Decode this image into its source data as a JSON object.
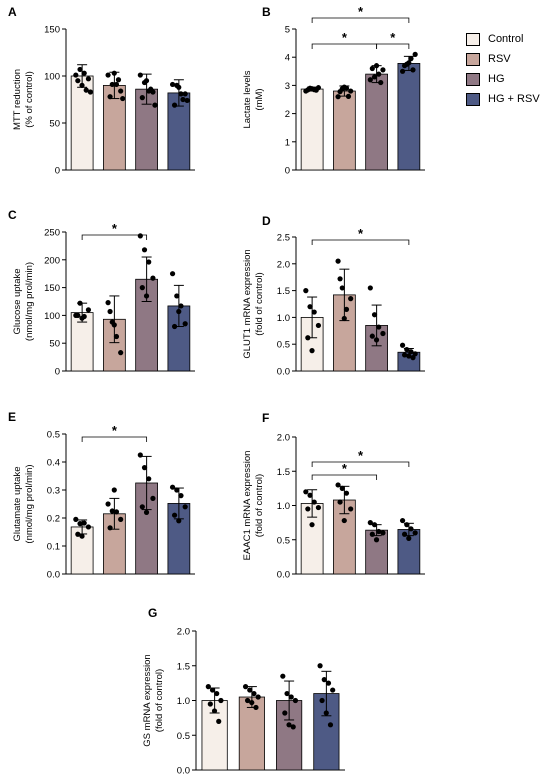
{
  "legend": {
    "entries": [
      {
        "label": "Control",
        "color": "#f6efe9"
      },
      {
        "label": "RSV",
        "color": "#c7a69c"
      },
      {
        "label": "HG",
        "color": "#8f7884"
      },
      {
        "label": "HG + RSV",
        "color": "#4e5a85"
      }
    ]
  },
  "chart_data": [
    {
      "panel": "A",
      "type": "bar",
      "categories": [
        "Control",
        "RSV",
        "HG",
        "HG + RSV"
      ],
      "values": [
        100,
        90,
        86,
        82
      ],
      "errors": [
        12,
        14,
        16,
        14
      ],
      "points": [
        [
          101,
          107,
          103,
          97,
          95,
          90,
          85,
          83
        ],
        [
          101,
          91,
          91,
          84,
          78,
          103,
          96,
          76
        ],
        [
          101,
          93,
          84,
          83,
          77,
          95,
          86,
          69
        ],
        [
          91,
          90,
          81,
          81,
          69,
          88,
          75,
          74
        ]
      ],
      "ylabel": [
        "MTT reduction",
        "(% of control)"
      ],
      "ylim": [
        0,
        150
      ],
      "yticks": [
        0,
        50,
        100,
        150
      ],
      "significance": []
    },
    {
      "panel": "B",
      "type": "bar",
      "categories": [
        "Control",
        "RSV",
        "HG",
        "HG + RSV"
      ],
      "values": [
        2.87,
        2.8,
        3.4,
        3.78
      ],
      "errors": [
        0.07,
        0.18,
        0.3,
        0.25
      ],
      "points": [
        [
          2.8,
          2.9,
          2.85,
          2.92,
          2.84,
          2.88,
          2.83
        ],
        [
          2.6,
          2.88,
          2.9,
          2.8,
          2.78,
          2.94,
          2.61
        ],
        [
          3.2,
          3.3,
          3.4,
          3.55,
          3.6,
          3.7,
          3.1
        ],
        [
          3.5,
          3.75,
          3.95,
          4.1,
          3.7,
          3.8,
          3.55
        ]
      ],
      "ylabel": [
        "Lactate levels",
        "(mM)"
      ],
      "ylim": [
        0,
        5
      ],
      "yticks": [
        0.0,
        1.0,
        2.0,
        3.0,
        4.0,
        5.0
      ],
      "significance": [
        {
          "from": 0,
          "to": 2,
          "label": "*"
        },
        {
          "from": 2,
          "to": 3,
          "label": "*"
        },
        {
          "from": 0,
          "to": 3,
          "label": "*"
        }
      ]
    },
    {
      "panel": "C",
      "type": "bar",
      "categories": [
        "Control",
        "RSV",
        "HG",
        "HG + RSV"
      ],
      "values": [
        105,
        93,
        165,
        117
      ],
      "errors": [
        17,
        42,
        40,
        37
      ],
      "points": [
        [
          100,
          122,
          98,
          110,
          100,
          95
        ],
        [
          123,
          88,
          62,
          33,
          107,
          83
        ],
        [
          243,
          218,
          196,
          167,
          150,
          135
        ],
        [
          175,
          135,
          117,
          85,
          80,
          107
        ]
      ],
      "ylabel": [
        "Glucose uptake",
        "(nmol/mg prol/min)"
      ],
      "ylim": [
        0,
        250
      ],
      "yticks": [
        0,
        50,
        100,
        150,
        200,
        250
      ],
      "significance": [
        {
          "from": 0,
          "to": 2,
          "label": "*"
        }
      ]
    },
    {
      "panel": "D",
      "type": "bar",
      "categories": [
        "Control",
        "RSV",
        "HG",
        "HG + RSV"
      ],
      "values": [
        1.0,
        1.42,
        0.85,
        0.35
      ],
      "errors": [
        0.38,
        0.48,
        0.38,
        0.07
      ],
      "points": [
        [
          1.5,
          1.2,
          1.1,
          0.85,
          0.62,
          0.38
        ],
        [
          2.05,
          1.55,
          1.15,
          1.35,
          1.72,
          0.98
        ],
        [
          1.55,
          1.05,
          0.82,
          0.7,
          0.65,
          0.58
        ],
        [
          0.48,
          0.4,
          0.36,
          0.32,
          0.3,
          0.28,
          0.25
        ]
      ],
      "ylabel": [
        "GLUT1 mRNA expression",
        "(fold of control)"
      ],
      "ylim": [
        0,
        2.5
      ],
      "yticks": [
        0.0,
        0.5,
        1.0,
        1.5,
        2.0,
        2.5
      ],
      "significance": [
        {
          "from": 0,
          "to": 3,
          "label": "*"
        }
      ]
    },
    {
      "panel": "E",
      "type": "bar",
      "categories": [
        "Control",
        "RSV",
        "HG",
        "HG + RSV"
      ],
      "values": [
        0.168,
        0.215,
        0.325,
        0.252
      ],
      "errors": [
        0.025,
        0.055,
        0.095,
        0.055
      ],
      "points": [
        [
          0.195,
          0.18,
          0.182,
          0.168,
          0.142,
          0.135
        ],
        [
          0.25,
          0.225,
          0.222,
          0.195,
          0.165,
          0.3
        ],
        [
          0.425,
          0.38,
          0.34,
          0.27,
          0.24,
          0.22
        ],
        [
          0.31,
          0.3,
          0.28,
          0.24,
          0.21,
          0.19
        ]
      ],
      "ylabel": [
        "Glutamate uptake",
        "(nmol/mg prol/min)"
      ],
      "ylim": [
        0,
        0.5
      ],
      "yticks": [
        0.0,
        0.1,
        0.2,
        0.3,
        0.4,
        0.5
      ],
      "significance": [
        {
          "from": 0,
          "to": 2,
          "label": "*"
        }
      ]
    },
    {
      "panel": "F",
      "type": "bar",
      "categories": [
        "Control",
        "RSV",
        "HG",
        "HG + RSV"
      ],
      "values": [
        1.03,
        1.08,
        0.64,
        0.65
      ],
      "errors": [
        0.2,
        0.2,
        0.08,
        0.09
      ],
      "points": [
        [
          1.2,
          1.15,
          1.05,
          0.97,
          0.95,
          0.72
        ],
        [
          1.3,
          1.25,
          1.18,
          0.95,
          1.05,
          0.78
        ],
        [
          0.75,
          0.72,
          0.62,
          0.6,
          0.58,
          0.5
        ],
        [
          0.78,
          0.72,
          0.66,
          0.6,
          0.58,
          0.52
        ]
      ],
      "ylabel": [
        "EAAC1 mRNA expression",
        "(fold of control)"
      ],
      "ylim": [
        0,
        2.0
      ],
      "yticks": [
        0.0,
        0.5,
        1.0,
        1.5,
        2.0
      ],
      "significance": [
        {
          "from": 0,
          "to": 2,
          "label": "*"
        },
        {
          "from": 0,
          "to": 3,
          "label": "*"
        }
      ]
    },
    {
      "panel": "G",
      "type": "bar",
      "categories": [
        "Control",
        "RSV",
        "HG",
        "HG + RSV"
      ],
      "values": [
        1.0,
        1.05,
        1.0,
        1.1
      ],
      "errors": [
        0.18,
        0.15,
        0.28,
        0.32
      ],
      "points": [
        [
          1.2,
          1.15,
          1.1,
          1.0,
          0.95,
          0.85,
          0.7
        ],
        [
          1.2,
          1.15,
          1.1,
          1.05,
          1.0,
          0.97,
          0.9
        ],
        [
          1.35,
          1.1,
          1.05,
          1.0,
          0.82,
          0.65,
          0.62
        ],
        [
          1.5,
          1.3,
          1.25,
          1.15,
          1.0,
          0.82,
          0.65
        ]
      ],
      "ylabel": [
        "GS mRNA expression",
        "(fold of control)"
      ],
      "ylim": [
        0,
        2.0
      ],
      "yticks": [
        0.0,
        0.5,
        1.0,
        1.5,
        2.0
      ],
      "significance": []
    }
  ]
}
